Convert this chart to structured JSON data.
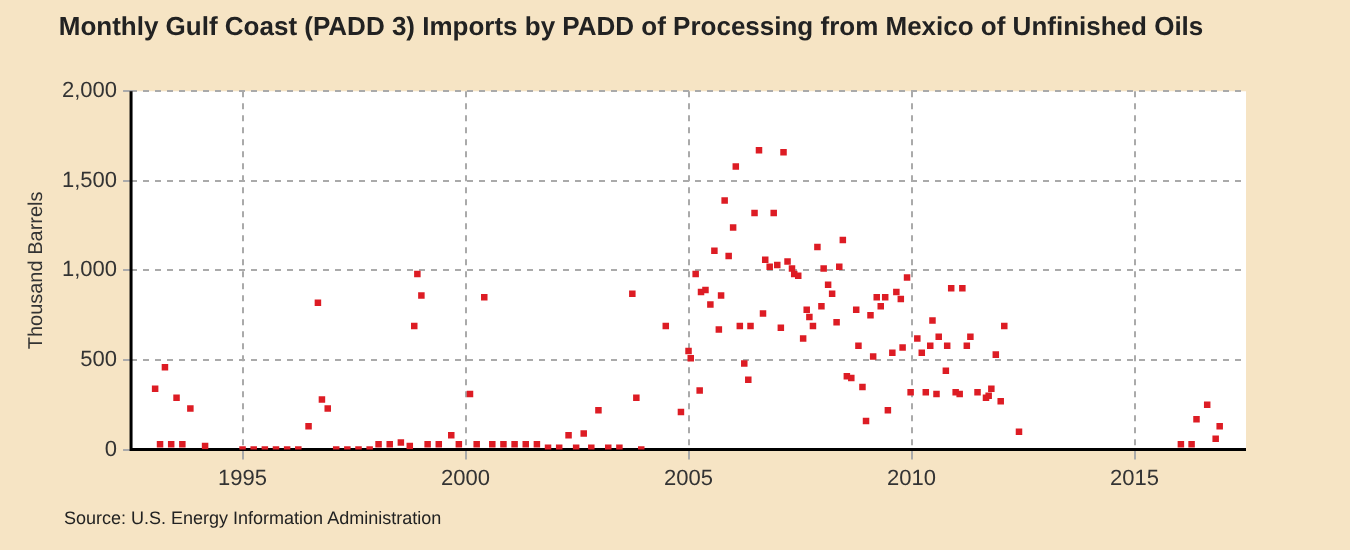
{
  "chart_data": {
    "type": "scatter",
    "title": "Monthly Gulf Coast (PADD 3) Imports by PADD of Processing from Mexico of Unfinished Oils",
    "ylabel": "Thousand Barrels",
    "annotations": [
      "Source: U.S. Energy Information Administration"
    ],
    "marker": "square",
    "grid": true,
    "legend": false,
    "xlim": [
      1992.5,
      2017.5
    ],
    "xticks": [
      1995,
      2000,
      2005,
      2010,
      2015
    ],
    "ylim": [
      0,
      2000
    ],
    "yticks": [
      0,
      500,
      {
        "value": 1000,
        "label": "1,000"
      },
      {
        "value": 1500,
        "label": "1,500"
      },
      {
        "value": 2000,
        "label": "2,000"
      }
    ],
    "series": [
      {
        "color": "#dd1c24",
        "x": [
          1993.04,
          1993.15,
          1993.26,
          1993.4,
          1993.52,
          1993.65,
          1993.83,
          1994.16,
          1995.0,
          1995.25,
          1995.5,
          1995.75,
          1996.0,
          1996.25,
          1996.48,
          1996.69,
          1996.78,
          1996.91,
          1997.1,
          1997.35,
          1997.6,
          1997.85,
          1998.05,
          1998.3,
          1998.55,
          1998.75,
          1998.85,
          1998.92,
          1999.01,
          1999.15,
          1999.4,
          1999.68,
          1999.85,
          2000.1,
          2000.25,
          2000.42,
          2000.6,
          2000.85,
          2001.1,
          2001.35,
          2001.6,
          2001.85,
          2002.1,
          2002.31,
          2002.48,
          2002.65,
          2002.82,
          2002.98,
          2003.2,
          2003.45,
          2003.74,
          2003.83,
          2003.94,
          2004.49,
          2004.83,
          2005.0,
          2005.05,
          2005.16,
          2005.25,
          2005.28,
          2005.38,
          2005.49,
          2005.58,
          2005.68,
          2005.73,
          2005.81,
          2005.9,
          2006.0,
          2006.06,
          2006.15,
          2006.25,
          2006.34,
          2006.39,
          2006.48,
          2006.58,
          2006.67,
          2006.72,
          2006.82,
          2006.91,
          2006.99,
          2007.07,
          2007.13,
          2007.22,
          2007.32,
          2007.37,
          2007.46,
          2007.57,
          2007.65,
          2007.71,
          2007.79,
          2007.89,
          2007.98,
          2008.03,
          2008.13,
          2008.22,
          2008.32,
          2008.38,
          2008.46,
          2008.55,
          2008.65,
          2008.76,
          2008.81,
          2008.9,
          2008.98,
          2009.08,
          2009.14,
          2009.22,
          2009.31,
          2009.41,
          2009.47,
          2009.57,
          2009.66,
          2009.76,
          2009.8,
          2009.9,
          2009.98,
          2010.13,
          2010.23,
          2010.32,
          2010.42,
          2010.47,
          2010.56,
          2010.61,
          2010.77,
          2010.8,
          2010.89,
          2010.99,
          2011.08,
          2011.14,
          2011.24,
          2011.32,
          2011.48,
          2011.67,
          2011.73,
          2011.79,
          2011.89,
          2012.0,
          2012.08,
          2012.41,
          2016.04,
          2016.28,
          2016.39,
          2016.63,
          2016.82,
          2016.91
        ],
        "values": [
          340,
          30,
          460,
          30,
          290,
          30,
          230,
          20,
          0,
          0,
          0,
          0,
          0,
          0,
          130,
          820,
          280,
          230,
          0,
          0,
          0,
          0,
          30,
          30,
          40,
          20,
          690,
          980,
          860,
          30,
          30,
          80,
          30,
          310,
          30,
          850,
          30,
          30,
          30,
          30,
          30,
          10,
          10,
          80,
          10,
          90,
          10,
          220,
          10,
          10,
          870,
          290,
          0,
          690,
          210,
          550,
          510,
          980,
          330,
          880,
          890,
          810,
          1110,
          670,
          860,
          1390,
          1080,
          1240,
          1580,
          690,
          480,
          390,
          690,
          1320,
          1670,
          760,
          1060,
          1020,
          1320,
          1030,
          680,
          1660,
          1050,
          1010,
          980,
          970,
          620,
          780,
          740,
          690,
          1130,
          800,
          1010,
          920,
          870,
          710,
          1020,
          1170,
          410,
          400,
          780,
          580,
          350,
          160,
          750,
          520,
          850,
          800,
          850,
          220,
          540,
          880,
          840,
          570,
          960,
          320,
          620,
          540,
          320,
          580,
          720,
          310,
          630,
          440,
          580,
          900,
          320,
          310,
          900,
          580,
          630,
          320,
          290,
          300,
          340,
          530,
          270,
          690,
          100,
          30,
          30,
          170,
          250,
          60,
          130
        ]
      }
    ]
  }
}
